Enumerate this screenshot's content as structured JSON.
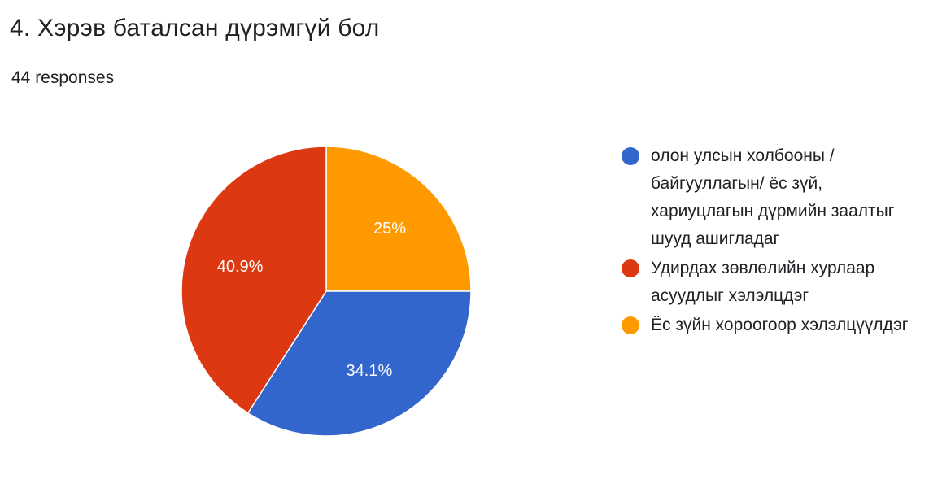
{
  "header": {
    "title": "4. Хэрэв баталсан дүрэмгүй бол",
    "responses": "44 responses"
  },
  "chart_data": {
    "type": "pie",
    "total_responses": 44,
    "start_angle_deg": 0,
    "direction": "clockwise",
    "slices": [
      {
        "label": "Ёс зүйн хороогоор хэлэлцүүлдэг",
        "value": 11,
        "percent_label": "25%",
        "color": "#ff9900"
      },
      {
        "label": "олон улсын холбооны / байгууллагын/ ёс зүй, хариуцлагын дүрмийн заалтыг шууд ашигладаг",
        "value": 15,
        "percent_label": "34.1%",
        "color": "#3366cc"
      },
      {
        "label": "Удирдах зөвлөлийн хурлаар асуудлыг хэлэлцдэг",
        "value": 18,
        "percent_label": "40.9%",
        "color": "#dc3912"
      }
    ],
    "legend": [
      {
        "label": "олон улсын холбооны / байгууллагын/ ёс зүй, хариуцлагын дүрмийн заалтыг шууд ашигладаг",
        "color": "#3366cc"
      },
      {
        "label": "Удирдах зөвлөлийн хурлаар асуудлыг хэлэлцдэг",
        "color": "#dc3912"
      },
      {
        "label": "Ёс зүйн хороогоор хэлэлцүүлдэг",
        "color": "#ff9900"
      }
    ],
    "legend_position": "right"
  }
}
